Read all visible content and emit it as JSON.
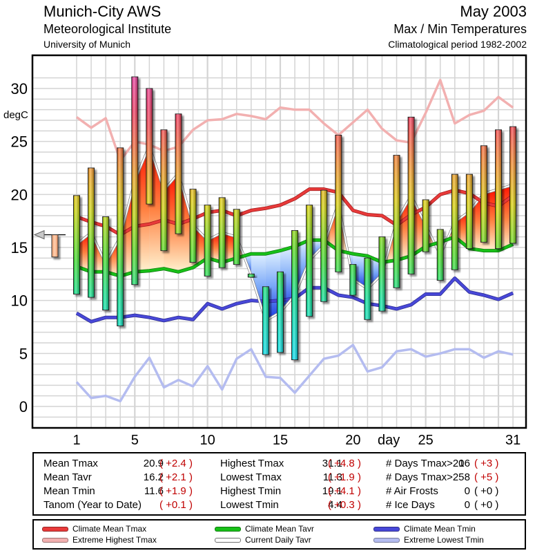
{
  "header": {
    "station": "Munich-City AWS",
    "institute": "Meteorological Institute",
    "university": "University of Munich",
    "period": "May 2003",
    "chart_type": "Max / Min Temperatures",
    "climatology": "Climatological period 1982-2002"
  },
  "colors": {
    "climate_mean_tmax": "#e83a3a",
    "extreme_highest_tmax": "#f2b0b0",
    "climate_mean_tavr": "#18c018",
    "current_daily_tavr": "#b8b8b8",
    "climate_mean_tmin": "#4848d8",
    "extreme_lowest_tmin": "#b4bcf0",
    "warm_fill": "#ff2000",
    "cold_fill": "#2a5cf0",
    "deviation_text": "#c00000",
    "grid": "#d4d4d4"
  },
  "chart_data": {
    "type": "bar",
    "title": "Max / Min Temperatures",
    "xlabel": "day",
    "ylabel": "degC",
    "xlim": [
      1,
      31
    ],
    "ylim": [
      -2,
      32
    ],
    "x_ticks": [
      "1",
      "5",
      "10",
      "15",
      "20",
      "25",
      "31"
    ],
    "x_tick_days": [
      1,
      5,
      10,
      15,
      20,
      25,
      31
    ],
    "y_ticks": [
      "0",
      "5",
      "10",
      "15",
      "20",
      "25",
      "30"
    ],
    "grid": true,
    "days": [
      1,
      2,
      3,
      4,
      5,
      6,
      7,
      8,
      9,
      10,
      11,
      12,
      13,
      14,
      15,
      16,
      17,
      18,
      19,
      20,
      21,
      22,
      23,
      24,
      25,
      26,
      27,
      28,
      29,
      30,
      31
    ],
    "daily_tmax": [
      19.9,
      22.5,
      17.9,
      24.4,
      31.1,
      30.0,
      26.1,
      27.6,
      20.5,
      19.0,
      19.7,
      18.6,
      12.5,
      11.3,
      12.7,
      16.6,
      19.0,
      20.4,
      25.6,
      13.4,
      14.0,
      16.0,
      23.7,
      27.3,
      19.5,
      16.7,
      21.9,
      21.9,
      24.6,
      26.1,
      26.4
    ],
    "daily_tmin": [
      10.6,
      10.3,
      9.1,
      7.6,
      11.5,
      19.1,
      14.7,
      16.3,
      13.6,
      12.3,
      13.1,
      13.4,
      12.2,
      4.9,
      5.1,
      4.4,
      8.5,
      9.9,
      12.7,
      10.5,
      8.2,
      9.0,
      11.2,
      12.5,
      14.6,
      11.9,
      12.9,
      14.9,
      15.5,
      14.9,
      15.4
    ],
    "series": [
      {
        "name": "Climate Mean Tmax",
        "values": [
          17.9,
          17.4,
          17.0,
          16.2,
          17.0,
          17.2,
          17.6,
          17.2,
          17.7,
          18.3,
          18.5,
          18.0,
          18.5,
          18.7,
          19.0,
          19.6,
          20.5,
          20.5,
          20.2,
          18.5,
          18.1,
          18.0,
          17.1,
          18.1,
          18.8,
          20.0,
          20.4,
          20.1,
          19.2,
          18.9,
          19.9
        ]
      },
      {
        "name": "Extreme Highest Tmax",
        "values": [
          27.3,
          26.3,
          27.2,
          23.2,
          25.0,
          24.7,
          24.1,
          24.5,
          26.1,
          27.0,
          27.1,
          27.6,
          27.4,
          27.1,
          28.2,
          28.0,
          28.0,
          26.7,
          25.6,
          26.8,
          28.0,
          26.2,
          25.1,
          24.9,
          27.7,
          30.8,
          26.7,
          27.5,
          27.9,
          29.2,
          28.2
        ]
      },
      {
        "name": "Climate Mean Tavr",
        "values": [
          13.2,
          12.7,
          12.7,
          12.3,
          12.7,
          12.8,
          13.0,
          12.7,
          13.1,
          14.0,
          13.6,
          14.0,
          14.4,
          14.4,
          14.7,
          15.1,
          15.7,
          15.7,
          14.7,
          14.4,
          14.2,
          13.6,
          13.8,
          14.2,
          15.1,
          15.5,
          16.0,
          14.9,
          14.7,
          14.7,
          15.3
        ]
      },
      {
        "name": "Current Daily Tavr",
        "values": [
          15.3,
          16.4,
          13.5,
          16.0,
          21.3,
          24.6,
          20.4,
          22.0,
          17.1,
          15.7,
          16.4,
          16.0,
          12.4,
          8.1,
          8.9,
          10.5,
          13.8,
          15.2,
          19.2,
          12.0,
          11.1,
          12.5,
          17.5,
          19.9,
          17.1,
          14.3,
          17.4,
          18.4,
          20.1,
          20.5,
          20.9
        ]
      },
      {
        "name": "Climate Mean Tmin",
        "values": [
          8.8,
          8.0,
          8.4,
          8.4,
          8.6,
          8.4,
          8.1,
          8.4,
          8.2,
          9.7,
          9.2,
          9.7,
          10.0,
          9.9,
          10.0,
          10.2,
          11.2,
          11.2,
          10.5,
          10.3,
          9.7,
          9.5,
          9.2,
          9.6,
          10.6,
          10.6,
          12.1,
          10.8,
          10.5,
          10.1,
          10.7
        ]
      },
      {
        "name": "Extreme Lowest Tmin",
        "values": [
          2.3,
          0.8,
          1.0,
          0.5,
          2.8,
          4.6,
          1.8,
          2.5,
          1.9,
          3.8,
          1.6,
          4.5,
          5.4,
          2.8,
          2.7,
          1.3,
          2.9,
          4.5,
          4.8,
          5.8,
          3.3,
          3.7,
          5.2,
          5.4,
          4.7,
          5.0,
          5.4,
          5.4,
          4.6,
          5.2,
          4.9
        ]
      }
    ],
    "monthly_marker": {
      "mean_tavr": 16.2,
      "climate_mean_tavr": 14.1
    },
    "legend_position": "bottom"
  },
  "stats": {
    "col1": [
      {
        "label": "Mean Tmax",
        "value": "20.9",
        "dev": "( +2.4 )"
      },
      {
        "label": "Mean Tavr",
        "value": "16.2",
        "dev": "( +2.1 )"
      },
      {
        "label": "Mean Tmin",
        "value": "11.6",
        "dev": "( +1.9 )"
      },
      {
        "label": "Tanom (Year to Date)",
        "value": "",
        "dev": "( +0.1 )"
      }
    ],
    "col2": [
      {
        "label": "Highest Tmax",
        "value": "31.1",
        "dev": "( +4.8 )"
      },
      {
        "label": "Lowest Tmax",
        "value": "11.3",
        "dev": "( +1.9 )"
      },
      {
        "label": "Highest Tmin",
        "value": "19.1",
        "dev": "( +4.1 )"
      },
      {
        "label": "Lowest Tmin",
        "value": "4.4",
        "dev": "( +0.3 )"
      }
    ],
    "col3": [
      {
        "label": "# Days Tmax>20",
        "value": "16",
        "dev": "( +3 )",
        "red": true
      },
      {
        "label": "# Days Tmax>25",
        "value": "8",
        "dev": "( +5 )",
        "red": true
      },
      {
        "label": "# Air Frosts",
        "value": "0",
        "dev": "( +0 )",
        "red": false
      },
      {
        "label": "# Ice Days",
        "value": "0",
        "dev": "( +0 )",
        "red": false
      }
    ]
  },
  "legend": [
    {
      "label": "Climate Mean Tmax",
      "color_key": "climate_mean_tmax"
    },
    {
      "label": "Extreme Highest Tmax",
      "color_key": "extreme_highest_tmax"
    },
    {
      "label": "Climate Mean Tavr",
      "color_key": "climate_mean_tavr"
    },
    {
      "label": "Current Daily Tavr",
      "color_key": "current_daily_tavr"
    },
    {
      "label": "Climate Mean Tmin",
      "color_key": "climate_mean_tmin"
    },
    {
      "label": "Extreme Lowest Tmin",
      "color_key": "extreme_lowest_tmin"
    }
  ]
}
